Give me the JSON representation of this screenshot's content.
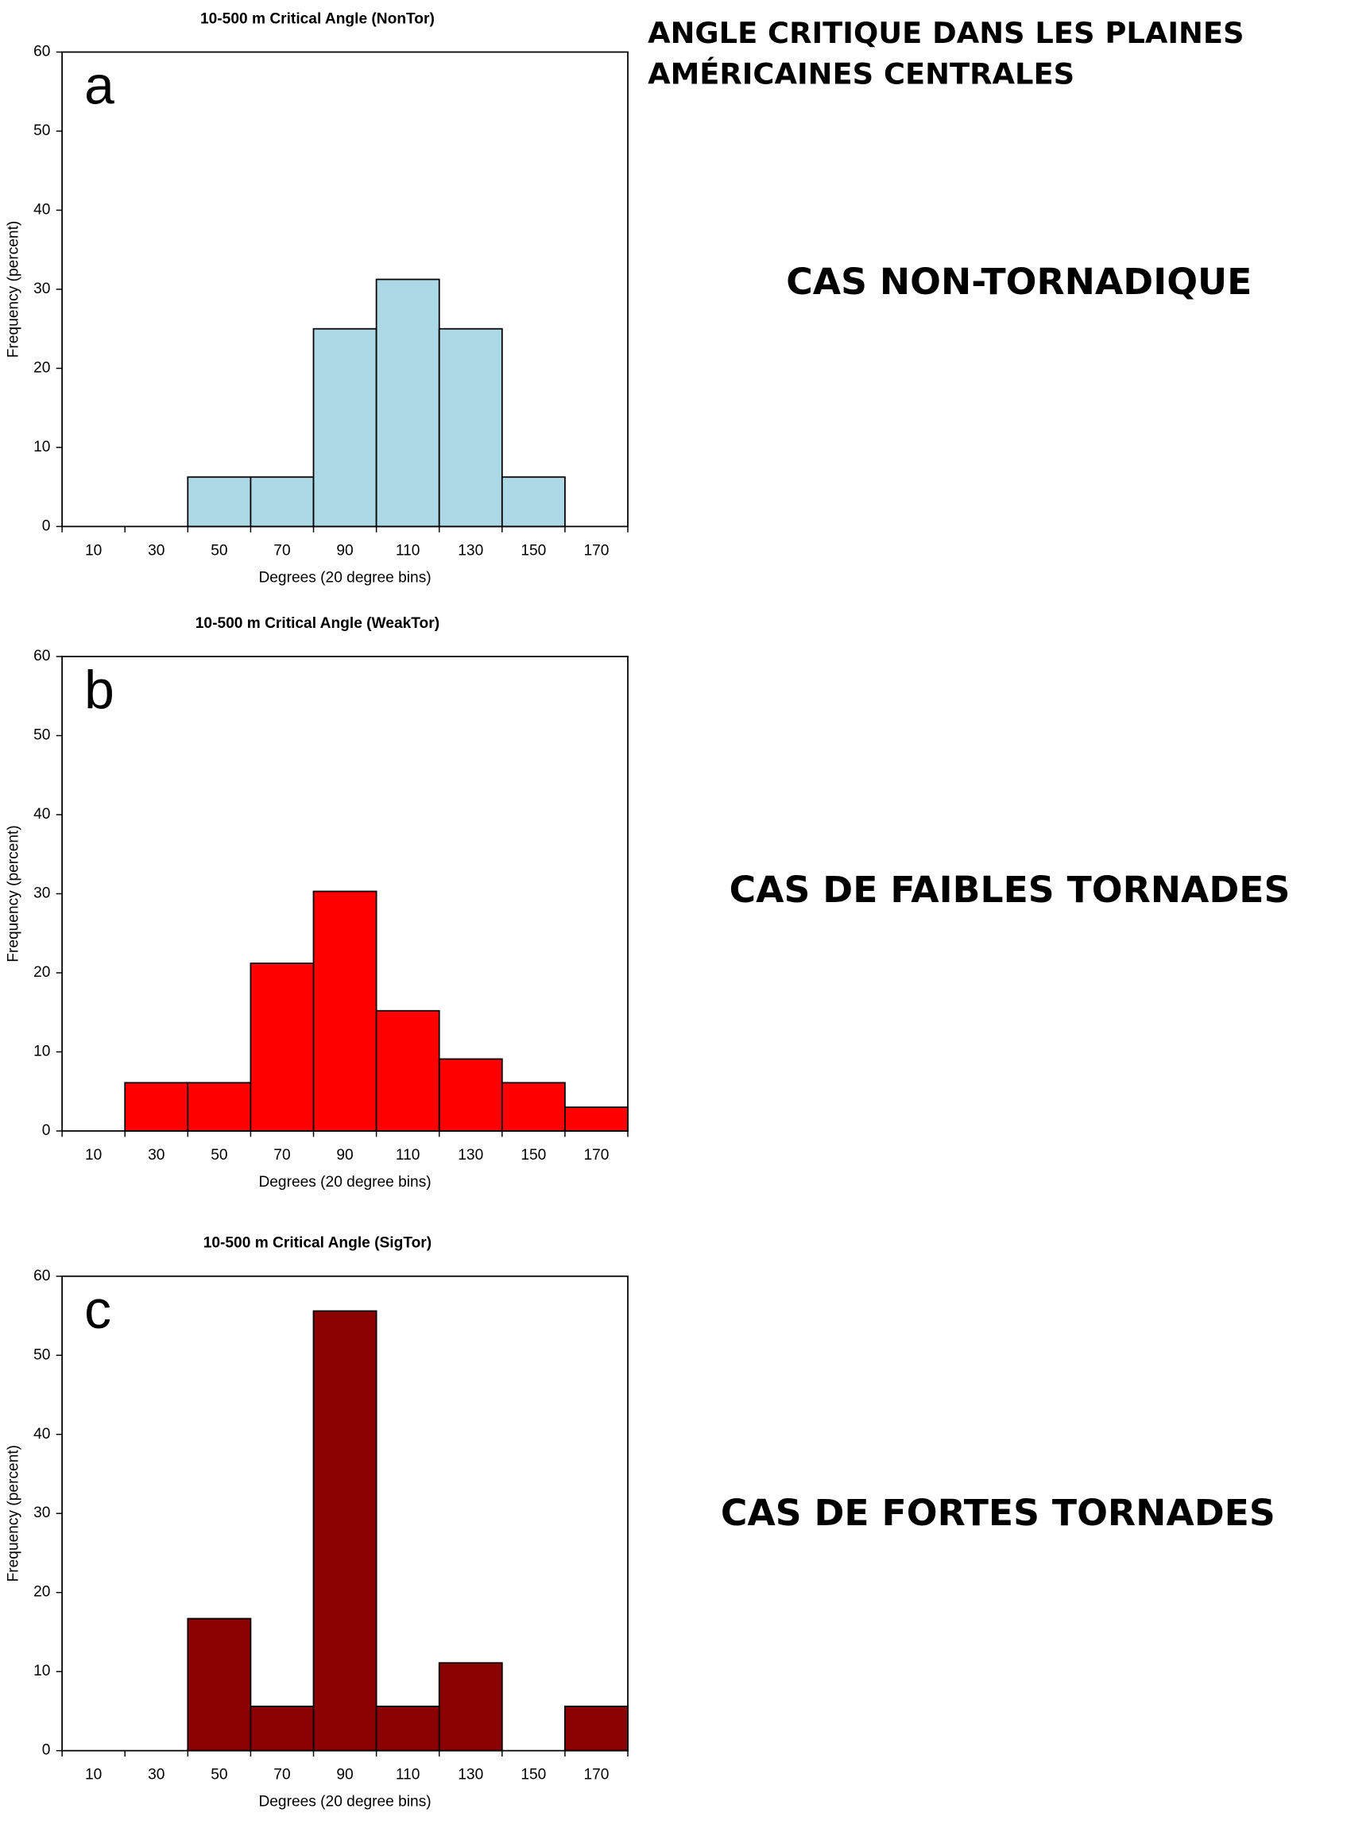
{
  "heading": [
    "ANGLE CRITIQUE DANS LES PLAINES",
    "AMÉRICAINES CENTRALES"
  ],
  "captions": [
    "CAS NON-TORNADIQUE",
    "CAS DE FAIBLES TORNADES",
    "CAS DE FORTES TORNADES"
  ],
  "chart_data": [
    {
      "type": "histogram",
      "title": "10-500 m Critical Angle (NonTor)",
      "panel_label": "a",
      "x_label": "Degrees (20 degree bins)",
      "y_label": "Frequency (percent)",
      "bins": [
        0,
        20,
        40,
        60,
        80,
        100,
        120,
        140,
        160,
        180
      ],
      "values": [
        0,
        0,
        6.25,
        6.25,
        25,
        31.25,
        25,
        6.25,
        0
      ],
      "color": "#add8e6",
      "xlim": [
        0,
        180
      ],
      "xticks": [
        10,
        30,
        50,
        70,
        90,
        110,
        130,
        150,
        170
      ],
      "ylim": [
        0,
        60
      ],
      "yticks": [
        0,
        10,
        20,
        30,
        40,
        50,
        60
      ]
    },
    {
      "type": "histogram",
      "title": "10-500 m Critical Angle (WeakTor)",
      "panel_label": "b",
      "x_label": "Degrees (20 degree bins)",
      "y_label": "Frequency (percent)",
      "bins": [
        0,
        20,
        40,
        60,
        80,
        100,
        120,
        140,
        160,
        180
      ],
      "values": [
        0,
        6.1,
        6.1,
        21.2,
        30.3,
        15.2,
        9.1,
        6.1,
        3.0
      ],
      "color": "#ff0000",
      "xlim": [
        0,
        180
      ],
      "xticks": [
        10,
        30,
        50,
        70,
        90,
        110,
        130,
        150,
        170
      ],
      "ylim": [
        0,
        60
      ],
      "yticks": [
        0,
        10,
        20,
        30,
        40,
        50,
        60
      ]
    },
    {
      "type": "histogram",
      "title": "10-500 m Critical Angle (SigTor)",
      "panel_label": "c",
      "x_label": "Degrees (20 degree bins)",
      "y_label": "Frequency (percent)",
      "bins": [
        0,
        20,
        40,
        60,
        80,
        100,
        120,
        140,
        160,
        180
      ],
      "values": [
        0,
        0,
        16.7,
        5.6,
        55.6,
        5.6,
        11.1,
        0,
        5.6
      ],
      "color": "#8b0000",
      "xlim": [
        0,
        180
      ],
      "xticks": [
        10,
        30,
        50,
        70,
        90,
        110,
        130,
        150,
        170
      ],
      "ylim": [
        0,
        60
      ],
      "yticks": [
        0,
        10,
        20,
        30,
        40,
        50,
        60
      ]
    }
  ]
}
